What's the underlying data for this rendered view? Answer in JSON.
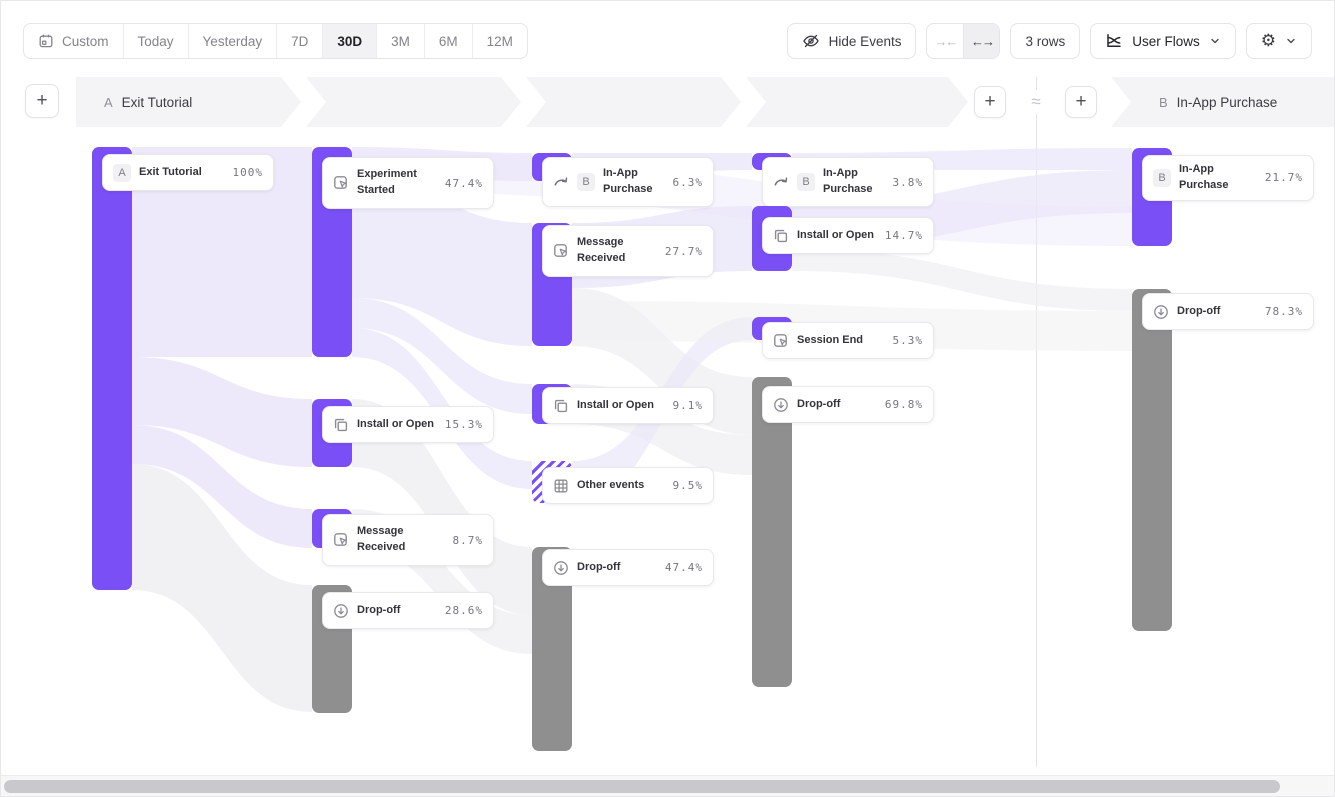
{
  "toolbar": {
    "date_ranges": [
      {
        "label": "Custom",
        "icon": "calendar-icon",
        "selected": false
      },
      {
        "label": "Today",
        "selected": false
      },
      {
        "label": "Yesterday",
        "selected": false
      },
      {
        "label": "7D",
        "selected": false
      },
      {
        "label": "30D",
        "selected": true
      },
      {
        "label": "3M",
        "selected": false
      },
      {
        "label": "6M",
        "selected": false
      },
      {
        "label": "12M",
        "selected": false
      }
    ],
    "hide_events_label": "Hide Events",
    "zoom_controls": {
      "collapse": "→←",
      "expand": "←→",
      "active": "expand"
    },
    "rows_label": "3 rows",
    "view_selector": {
      "label": "User Flows"
    },
    "settings_icon": "⚙"
  },
  "header": {
    "add_step_label": "+",
    "approx_symbol": "≈",
    "flow_a": {
      "badge": "A",
      "label": "Exit Tutorial"
    },
    "flow_b": {
      "badge": "B",
      "label": "In-App Purchase"
    }
  },
  "flows": {
    "left": {
      "columns": [
        [
          {
            "label": "Exit Tutorial",
            "value": "100%",
            "badge": "A",
            "icon": null
          }
        ],
        [
          {
            "label": "Experiment Started",
            "value": "47.4%",
            "icon": "event"
          },
          {
            "label": "Install or Open",
            "value": "15.3%",
            "icon": "install"
          },
          {
            "label": "Message Received",
            "value": "8.7%",
            "icon": "event"
          },
          {
            "label": "Drop-off",
            "value": "28.6%",
            "icon": "dropoff"
          }
        ],
        [
          {
            "label": "In-App Purchase",
            "value": "6.3%",
            "icon": "goal",
            "badge": "B"
          },
          {
            "label": "Message Received",
            "value": "27.7%",
            "icon": "event"
          },
          {
            "label": "Install or Open",
            "value": "9.1%",
            "icon": "install"
          },
          {
            "label": "Other events",
            "value": "9.5%",
            "icon": "grid"
          },
          {
            "label": "Drop-off",
            "value": "47.4%",
            "icon": "dropoff"
          }
        ],
        [
          {
            "label": "In-App Purchase",
            "value": "3.8%",
            "icon": "goal",
            "badge": "B"
          },
          {
            "label": "Install or Open",
            "value": "14.7%",
            "icon": "install"
          },
          {
            "label": "Session End",
            "value": "5.3%",
            "icon": "event"
          },
          {
            "label": "Drop-off",
            "value": "69.8%",
            "icon": "dropoff"
          }
        ]
      ]
    },
    "right": {
      "nodes": [
        {
          "label": "In-App Purchase",
          "value": "21.7%",
          "badge": "B",
          "icon": null
        },
        {
          "label": "Drop-off",
          "value": "78.3%",
          "icon": "dropoff"
        }
      ]
    }
  },
  "colors": {
    "purple": "#7a4ff5",
    "gray": "#8f8f8f",
    "ribbon_purple": "#ebe7fa",
    "ribbon_gray": "#f0f0f2"
  }
}
